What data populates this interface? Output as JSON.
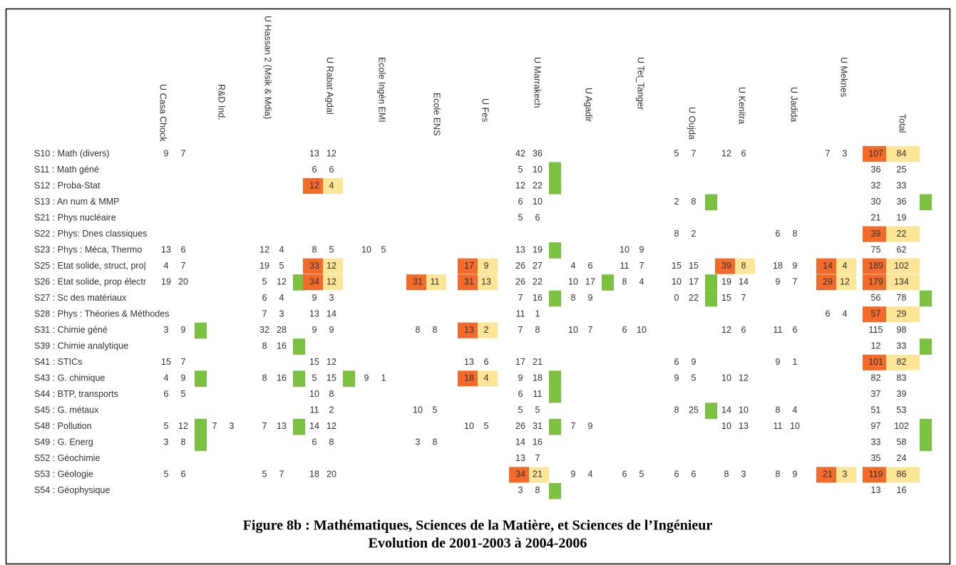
{
  "caption": [
    "Figure 8b : Mathématiques, Sciences de la Matière, et Sciences de l’Ingénieur",
    "Evolution de 2001-2003 à 2004-2006"
  ],
  "colors": {
    "decline_from": "#f26b2a",
    "decline_to": "#fde597",
    "growth": "#7cc242"
  },
  "table": {
    "columns": [
      "U Casa Chock",
      "R&D Ind.",
      "U Hassan 2 (Msik & Mdia)",
      "U Rabat Agdal",
      "Ecole Ingén EMI",
      "Ecole ENS",
      "U Fes",
      "U Marrakech",
      "U Agadir",
      "U Tet_Tanger",
      "U Oujda",
      "U Kenitra",
      "U Jadida",
      "U Meknes",
      "Total"
    ],
    "rows": [
      {
        "label": "S10 : Math (divers)",
        "cells": [
          {
            "v": [
              9,
              7
            ]
          },
          null,
          null,
          {
            "v": [
              13,
              12
            ]
          },
          null,
          null,
          null,
          {
            "v": [
              42,
              36
            ]
          },
          null,
          null,
          {
            "v": [
              5,
              7
            ]
          },
          {
            "v": [
              12,
              6
            ]
          },
          null,
          {
            "v": [
              7,
              3
            ]
          },
          {
            "v": [
              107,
              84
            ],
            "highlight": "decline"
          }
        ]
      },
      {
        "label": "S11 : Math géné",
        "cells": [
          null,
          null,
          null,
          {
            "v": [
              6,
              6
            ]
          },
          null,
          null,
          null,
          {
            "v": [
              5,
              10
            ],
            "highlight": "growth"
          },
          null,
          null,
          null,
          null,
          null,
          null,
          {
            "v": [
              36,
              25
            ]
          }
        ]
      },
      {
        "label": "S12 : Proba-Stat",
        "cells": [
          null,
          null,
          null,
          {
            "v": [
              12,
              4
            ],
            "highlight": "decline"
          },
          null,
          null,
          null,
          {
            "v": [
              12,
              22
            ],
            "highlight": "growth"
          },
          null,
          null,
          null,
          null,
          null,
          null,
          {
            "v": [
              32,
              33
            ]
          }
        ]
      },
      {
        "label": "S13 : An num & MMP",
        "cells": [
          null,
          null,
          null,
          null,
          null,
          null,
          null,
          {
            "v": [
              6,
              10
            ]
          },
          null,
          null,
          {
            "v": [
              2,
              8
            ],
            "highlight": "growth"
          },
          null,
          null,
          null,
          {
            "v": [
              30,
              36
            ],
            "highlight": "growth"
          }
        ]
      },
      {
        "label": "S21 : Phys nucléaire",
        "cells": [
          null,
          null,
          null,
          null,
          null,
          null,
          null,
          {
            "v": [
              5,
              6
            ]
          },
          null,
          null,
          null,
          null,
          null,
          null,
          {
            "v": [
              21,
              19
            ]
          }
        ]
      },
      {
        "label": "S22 : Phys: Dnes classiques",
        "cells": [
          null,
          null,
          null,
          null,
          null,
          null,
          null,
          null,
          null,
          null,
          {
            "v": [
              8,
              2
            ]
          },
          null,
          {
            "v": [
              6,
              8
            ]
          },
          null,
          {
            "v": [
              39,
              22
            ],
            "highlight": "decline"
          }
        ]
      },
      {
        "label": "S23 : Phys : Méca, Thermo",
        "cells": [
          {
            "v": [
              13,
              6
            ]
          },
          null,
          {
            "v": [
              12,
              4
            ]
          },
          {
            "v": [
              8,
              5
            ]
          },
          {
            "v": [
              10,
              5
            ]
          },
          null,
          null,
          {
            "v": [
              13,
              19
            ],
            "highlight": "growth"
          },
          null,
          {
            "v": [
              10,
              9
            ]
          },
          null,
          null,
          null,
          null,
          {
            "v": [
              75,
              62
            ]
          }
        ]
      },
      {
        "label": "S25 : Etat solide, struct, pro|",
        "cells": [
          {
            "v": [
              4,
              7
            ]
          },
          null,
          {
            "v": [
              19,
              5
            ]
          },
          {
            "v": [
              33,
              12
            ],
            "highlight": "decline"
          },
          null,
          null,
          {
            "v": [
              17,
              9
            ],
            "highlight": "decline"
          },
          {
            "v": [
              26,
              27
            ]
          },
          {
            "v": [
              4,
              6
            ]
          },
          {
            "v": [
              11,
              7
            ]
          },
          {
            "v": [
              15,
              15
            ]
          },
          {
            "v": [
              39,
              8
            ],
            "highlight": "decline"
          },
          {
            "v": [
              18,
              9
            ]
          },
          {
            "v": [
              14,
              4
            ],
            "highlight": "decline"
          },
          {
            "v": [
              189,
              102
            ],
            "highlight": "decline"
          }
        ]
      },
      {
        "label": "S26 : Etat solide, prop électr",
        "cells": [
          {
            "v": [
              19,
              20
            ]
          },
          null,
          {
            "v": [
              5,
              12
            ],
            "highlight": "growth"
          },
          {
            "v": [
              34,
              12
            ],
            "highlight": "decline"
          },
          null,
          {
            "v": [
              31,
              11
            ],
            "highlight": "decline"
          },
          {
            "v": [
              31,
              13
            ],
            "highlight": "decline"
          },
          {
            "v": [
              26,
              22
            ]
          },
          {
            "v": [
              10,
              17
            ],
            "highlight": "growth"
          },
          {
            "v": [
              8,
              4
            ]
          },
          {
            "v": [
              10,
              17
            ],
            "highlight": "growth"
          },
          {
            "v": [
              19,
              14
            ]
          },
          {
            "v": [
              9,
              7
            ]
          },
          {
            "v": [
              29,
              12
            ],
            "highlight": "decline"
          },
          {
            "v": [
              179,
              134
            ],
            "highlight": "decline"
          }
        ]
      },
      {
        "label": "S27 : Sc des matériaux",
        "cells": [
          null,
          null,
          {
            "v": [
              6,
              4
            ]
          },
          {
            "v": [
              9,
              3
            ]
          },
          null,
          null,
          null,
          {
            "v": [
              7,
              16
            ],
            "highlight": "growth"
          },
          {
            "v": [
              8,
              9
            ]
          },
          null,
          {
            "v": [
              0,
              22
            ],
            "highlight": "growth"
          },
          {
            "v": [
              15,
              7
            ]
          },
          null,
          null,
          {
            "v": [
              56,
              78
            ],
            "highlight": "growth"
          }
        ]
      },
      {
        "label": "S28 : Phys : Théories & Méthodes",
        "cells": [
          null,
          null,
          {
            "v": [
              7,
              3
            ]
          },
          {
            "v": [
              13,
              14
            ]
          },
          null,
          null,
          null,
          {
            "v": [
              11,
              1
            ]
          },
          null,
          null,
          null,
          null,
          null,
          {
            "v": [
              6,
              4
            ]
          },
          {
            "v": [
              57,
              29
            ],
            "highlight": "decline"
          }
        ]
      },
      {
        "label": "S31 : Chimie géné",
        "cells": [
          {
            "v": [
              3,
              9
            ],
            "highlight": "growth"
          },
          null,
          {
            "v": [
              32,
              28
            ]
          },
          {
            "v": [
              9,
              9
            ]
          },
          null,
          {
            "v": [
              8,
              8
            ]
          },
          {
            "v": [
              13,
              2
            ],
            "highlight": "decline"
          },
          {
            "v": [
              7,
              8
            ]
          },
          {
            "v": [
              10,
              7
            ]
          },
          {
            "v": [
              6,
              10
            ]
          },
          null,
          {
            "v": [
              12,
              6
            ]
          },
          {
            "v": [
              11,
              6
            ]
          },
          null,
          {
            "v": [
              115,
              98
            ]
          }
        ]
      },
      {
        "label": "S39 : Chimie analytique",
        "cells": [
          null,
          null,
          {
            "v": [
              8,
              16
            ],
            "highlight": "growth"
          },
          null,
          null,
          null,
          null,
          null,
          null,
          null,
          null,
          null,
          null,
          null,
          {
            "v": [
              12,
              33
            ],
            "highlight": "growth"
          }
        ]
      },
      {
        "label": "S41 : STICs",
        "cells": [
          {
            "v": [
              15,
              7
            ]
          },
          null,
          null,
          {
            "v": [
              15,
              12
            ]
          },
          null,
          null,
          {
            "v": [
              13,
              6
            ]
          },
          {
            "v": [
              17,
              21
            ]
          },
          null,
          null,
          {
            "v": [
              6,
              9
            ]
          },
          null,
          {
            "v": [
              9,
              1
            ]
          },
          null,
          {
            "v": [
              101,
              82
            ],
            "highlight": "decline"
          }
        ]
      },
      {
        "label": "S43 : G. chimique",
        "cells": [
          {
            "v": [
              4,
              9
            ],
            "highlight": "growth"
          },
          null,
          {
            "v": [
              8,
              16
            ],
            "highlight": "growth"
          },
          {
            "v": [
              5,
              15
            ],
            "highlight": "growth"
          },
          {
            "v": [
              9,
              1
            ]
          },
          null,
          {
            "v": [
              18,
              4
            ],
            "highlight": "decline"
          },
          {
            "v": [
              9,
              18
            ],
            "highlight": "growth"
          },
          null,
          null,
          {
            "v": [
              9,
              5
            ]
          },
          {
            "v": [
              10,
              12
            ]
          },
          null,
          null,
          {
            "v": [
              82,
              83
            ]
          }
        ]
      },
      {
        "label": "S44 : BTP, transports",
        "cells": [
          {
            "v": [
              6,
              5
            ]
          },
          null,
          null,
          {
            "v": [
              10,
              8
            ]
          },
          null,
          null,
          null,
          {
            "v": [
              6,
              11
            ],
            "highlight": "growth"
          },
          null,
          null,
          null,
          null,
          null,
          null,
          {
            "v": [
              37,
              39
            ]
          }
        ]
      },
      {
        "label": "S45 : G. métaux",
        "cells": [
          null,
          null,
          null,
          {
            "v": [
              11,
              2
            ]
          },
          null,
          {
            "v": [
              10,
              5
            ]
          },
          null,
          {
            "v": [
              5,
              5
            ]
          },
          null,
          null,
          {
            "v": [
              8,
              25
            ],
            "highlight": "growth"
          },
          {
            "v": [
              14,
              10
            ]
          },
          {
            "v": [
              8,
              4
            ]
          },
          null,
          {
            "v": [
              51,
              53
            ]
          }
        ]
      },
      {
        "label": "S48 : Pollution",
        "cells": [
          {
            "v": [
              5,
              12
            ],
            "highlight": "growth"
          },
          {
            "v": [
              7,
              3
            ]
          },
          {
            "v": [
              7,
              13
            ],
            "highlight": "growth"
          },
          {
            "v": [
              14,
              12
            ]
          },
          null,
          null,
          {
            "v": [
              10,
              5
            ]
          },
          {
            "v": [
              26,
              31
            ],
            "highlight": "growth"
          },
          {
            "v": [
              7,
              9
            ]
          },
          null,
          null,
          {
            "v": [
              10,
              13
            ]
          },
          {
            "v": [
              11,
              10
            ]
          },
          null,
          {
            "v": [
              97,
              102
            ],
            "highlight": "growth"
          }
        ]
      },
      {
        "label": "S49 : G. Energ",
        "cells": [
          {
            "v": [
              3,
              8
            ],
            "highlight": "growth"
          },
          null,
          null,
          {
            "v": [
              6,
              8
            ]
          },
          null,
          {
            "v": [
              3,
              8
            ]
          },
          null,
          {
            "v": [
              14,
              16
            ]
          },
          null,
          null,
          null,
          null,
          null,
          null,
          {
            "v": [
              33,
              58
            ],
            "highlight": "growth"
          }
        ]
      },
      {
        "label": "S52 : Géochimie",
        "cells": [
          null,
          null,
          null,
          null,
          null,
          null,
          null,
          {
            "v": [
              13,
              7
            ]
          },
          null,
          null,
          null,
          null,
          null,
          null,
          {
            "v": [
              35,
              24
            ]
          }
        ]
      },
      {
        "label": "S53 : Géologie",
        "cells": [
          {
            "v": [
              5,
              6
            ]
          },
          null,
          {
            "v": [
              5,
              7
            ]
          },
          {
            "v": [
              18,
              20
            ]
          },
          null,
          null,
          null,
          {
            "v": [
              34,
              21
            ],
            "highlight": "decline"
          },
          {
            "v": [
              9,
              4
            ]
          },
          {
            "v": [
              6,
              5
            ]
          },
          {
            "v": [
              6,
              6
            ]
          },
          {
            "v": [
              8,
              3
            ]
          },
          {
            "v": [
              8,
              9
            ]
          },
          {
            "v": [
              21,
              3
            ],
            "highlight": "decline"
          },
          {
            "v": [
              119,
              86
            ],
            "highlight": "decline"
          }
        ]
      },
      {
        "label": "S54 : Géophysique",
        "cells": [
          null,
          null,
          null,
          null,
          null,
          null,
          null,
          {
            "v": [
              3,
              8
            ],
            "highlight": "growth"
          },
          null,
          null,
          null,
          null,
          null,
          null,
          {
            "v": [
              13,
              16
            ]
          }
        ]
      }
    ]
  }
}
